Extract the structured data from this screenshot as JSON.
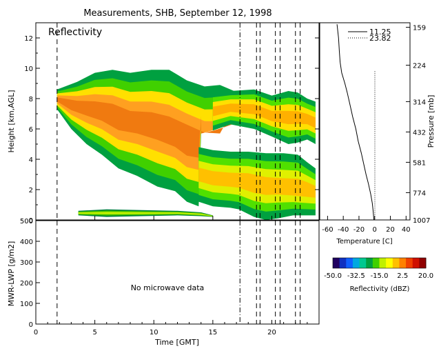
{
  "title": "Measurements, SHB, September 12, 1998",
  "chart_data": [
    {
      "type": "heatmap",
      "panel_label": "Reflectivity",
      "xlabel": "",
      "ylabel": "Height [km,AGL]",
      "xlim": [
        0,
        24
      ],
      "ylim": [
        0,
        13
      ],
      "y_ticks": [
        "0",
        "2",
        "4",
        "6",
        "8",
        "10",
        "12"
      ],
      "y_tick_values": [
        0,
        2,
        4,
        6,
        8,
        10,
        12
      ],
      "right_axis_label": "Pressure [mb]",
      "right_ticks": [
        "159",
        "224",
        "314",
        "432",
        "581",
        "774",
        "1007"
      ],
      "right_tick_heights_km": [
        12.7,
        10.2,
        7.8,
        5.8,
        3.8,
        1.8,
        0.0
      ],
      "vertical_lines": [
        {
          "x": 1.8,
          "style": "dash"
        },
        {
          "x": 17.3,
          "style": "dashdot"
        },
        {
          "x": 18.7,
          "style": "dash"
        },
        {
          "x": 19.0,
          "style": "dash"
        },
        {
          "x": 20.3,
          "style": "dash"
        },
        {
          "x": 20.7,
          "style": "dash"
        },
        {
          "x": 22.0,
          "style": "dash"
        },
        {
          "x": 22.4,
          "style": "dash"
        }
      ],
      "echo_regions": [
        {
          "top": [
            [
              1.8,
              8.6
            ],
            [
              3.5,
              9.1
            ],
            [
              5.0,
              9.7
            ],
            [
              6.5,
              9.9
            ],
            [
              8.0,
              9.7
            ],
            [
              9.8,
              9.9
            ],
            [
              11.3,
              9.9
            ],
            [
              12.8,
              9.2
            ],
            [
              14.3,
              8.8
            ],
            [
              15.6,
              8.9
            ],
            [
              16.8,
              8.5
            ],
            [
              17.3,
              7.0
            ],
            [
              16.0,
              6.4
            ],
            [
              15.0,
              6.0
            ],
            [
              14.0,
              5.7
            ]
          ],
          "bottom": [
            [
              1.8,
              7.3
            ],
            [
              3.0,
              6.0
            ],
            [
              4.3,
              5.0
            ],
            [
              5.6,
              4.3
            ],
            [
              7.0,
              3.4
            ],
            [
              8.6,
              2.9
            ],
            [
              10.3,
              2.2
            ],
            [
              11.8,
              1.9
            ],
            [
              12.8,
              1.2
            ],
            [
              13.8,
              0.9
            ],
            [
              14.0,
              5.7
            ]
          ],
          "colors": [
            "#00a040",
            "#40d000",
            "#ffe000",
            "#ffa020",
            "#f07a10"
          ]
        },
        {
          "top": [
            [
              13.8,
              4.8
            ],
            [
              15.0,
              4.6
            ],
            [
              16.5,
              4.5
            ],
            [
              18.0,
              4.5
            ],
            [
              19.5,
              4.4
            ],
            [
              21.0,
              4.4
            ],
            [
              22.2,
              4.3
            ],
            [
              23.0,
              3.8
            ],
            [
              23.7,
              3.4
            ]
          ],
          "bottom": [
            [
              13.8,
              1.2
            ],
            [
              15.0,
              0.9
            ],
            [
              16.5,
              0.8
            ],
            [
              17.2,
              0.7
            ],
            [
              18.5,
              0.2
            ],
            [
              19.5,
              0.0
            ],
            [
              20.5,
              0.1
            ],
            [
              21.8,
              0.3
            ],
            [
              23.7,
              0.3
            ]
          ],
          "colors": [
            "#00a040",
            "#50e000",
            "#e0f000",
            "#ffc000"
          ]
        },
        {
          "top": [
            [
              15.0,
              8.4
            ],
            [
              16.5,
              8.5
            ],
            [
              18.5,
              8.6
            ],
            [
              20.0,
              8.2
            ],
            [
              21.4,
              8.5
            ],
            [
              22.2,
              8.4
            ],
            [
              23.0,
              8.0
            ],
            [
              23.7,
              7.8
            ]
          ],
          "bottom": [
            [
              15.0,
              5.9
            ],
            [
              16.5,
              6.3
            ],
            [
              18.5,
              6.0
            ],
            [
              20.0,
              5.5
            ],
            [
              21.4,
              5.0
            ],
            [
              22.2,
              5.1
            ],
            [
              23.0,
              5.3
            ],
            [
              23.7,
              5.0
            ]
          ],
          "colors": [
            "#00a040",
            "#50e000",
            "#ffe000",
            "#ffb000"
          ]
        },
        {
          "top": [
            [
              3.6,
              0.6
            ],
            [
              6.0,
              0.7
            ],
            [
              9.0,
              0.65
            ],
            [
              12.0,
              0.6
            ],
            [
              14.0,
              0.5
            ],
            [
              15.0,
              0.3
            ]
          ],
          "bottom": [
            [
              3.6,
              0.3
            ],
            [
              6.0,
              0.2
            ],
            [
              9.0,
              0.25
            ],
            [
              12.0,
              0.3
            ],
            [
              14.0,
              0.25
            ],
            [
              15.0,
              0.2
            ]
          ],
          "colors": [
            "#008040",
            "#40c000",
            "#c0f000"
          ]
        }
      ]
    },
    {
      "type": "line",
      "xlabel": "Temperature [C]",
      "ylabel": "",
      "xlim": [
        -70,
        45
      ],
      "x_ticks": [
        "-60",
        "-40",
        "-20",
        "0",
        "20",
        "40"
      ],
      "x_tick_values": [
        -60,
        -40,
        -20,
        0,
        20,
        40
      ],
      "series": [
        {
          "name": "11.25",
          "style": "solid",
          "points": [
            [
              -48,
              12.9
            ],
            [
              -46,
              12.0
            ],
            [
              -45,
              11.1
            ],
            [
              -44,
              10.4
            ],
            [
              -42,
              9.7
            ],
            [
              -38,
              9.0
            ],
            [
              -35,
              8.4
            ],
            [
              -31,
              7.5
            ],
            [
              -28,
              6.8
            ],
            [
              -24,
              6.0
            ],
            [
              -21,
              5.2
            ],
            [
              -17,
              4.4
            ],
            [
              -14,
              3.7
            ],
            [
              -11,
              3.0
            ],
            [
              -8,
              2.4
            ],
            [
              -5,
              1.7
            ],
            [
              -3,
              1.1
            ],
            [
              -2,
              0.6
            ],
            [
              -1,
              0.0
            ]
          ]
        },
        {
          "name": "23.82",
          "style": "dotted",
          "points": [
            [
              0.2,
              9.8
            ],
            [
              0.2,
              7.5
            ],
            [
              0.2,
              5.0
            ],
            [
              0.2,
              2.5
            ],
            [
              0.2,
              0.0
            ]
          ]
        }
      ]
    },
    {
      "type": "line",
      "xlabel": "Time [GMT]",
      "ylabel": "MWR-LWP [g/m2]",
      "xlim": [
        0,
        24
      ],
      "ylim": [
        0,
        500
      ],
      "x_ticks": [
        "0",
        "5",
        "10",
        "15",
        "20"
      ],
      "x_tick_values": [
        0,
        5,
        10,
        15,
        20
      ],
      "y_ticks": [
        "0",
        "100",
        "200",
        "300",
        "400",
        "500"
      ],
      "y_tick_values": [
        0,
        100,
        200,
        300,
        400,
        500
      ],
      "annotation": "No microwave data",
      "series": []
    },
    {
      "type": "heatmap",
      "title": "Reflectivity (dBZ)",
      "range": [
        -50,
        20
      ],
      "tick_labels": [
        "-50.0",
        "-32.5",
        "-15.0",
        "2.5",
        "20.0"
      ],
      "tick_values": [
        -50,
        -32.5,
        -15,
        2.5,
        20
      ],
      "colors": [
        "#200060",
        "#1030c0",
        "#1060ff",
        "#00a8e0",
        "#00c890",
        "#00a040",
        "#40d000",
        "#c0f000",
        "#ffff00",
        "#ffc000",
        "#ff8000",
        "#f04000",
        "#d01000",
        "#900000"
      ]
    }
  ]
}
